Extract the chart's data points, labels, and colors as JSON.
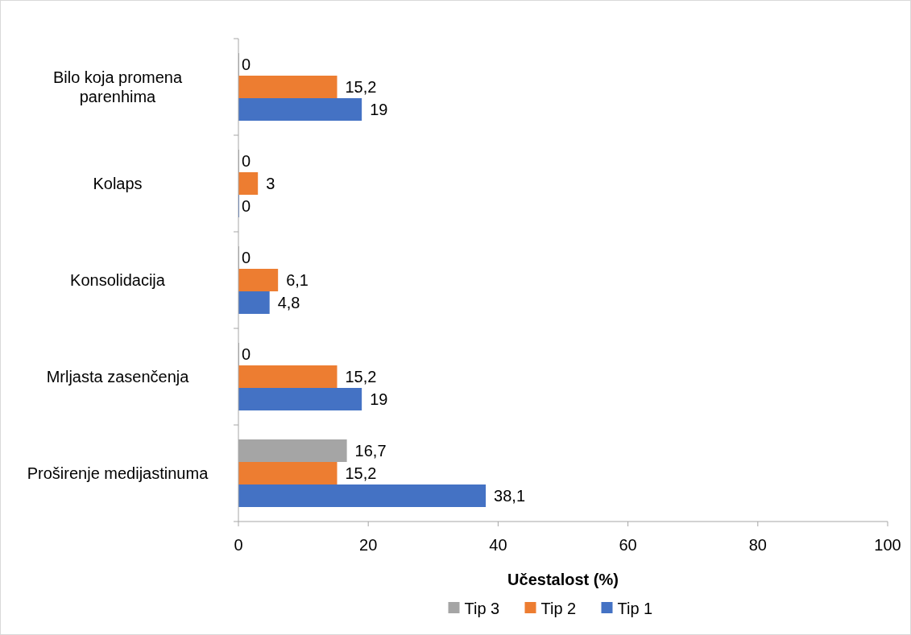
{
  "chart_data": {
    "type": "bar",
    "orientation": "horizontal",
    "xlabel": "Učestalost (%)",
    "categories": [
      "Bilo koja promena parenhima",
      "Kolaps",
      "Konsolidacija",
      "Mrljasta zasenčenja",
      "Proširenje medijastinuma"
    ],
    "series": [
      {
        "name": "Tip 3",
        "color": "#a5a5a5",
        "values": [
          0,
          0,
          0,
          0,
          16.7
        ],
        "value_labels": [
          "0",
          "0",
          "0",
          "0",
          "16,7"
        ]
      },
      {
        "name": "Tip 2",
        "color": "#ed7d31",
        "values": [
          15.2,
          3,
          6.1,
          15.2,
          15.2
        ],
        "value_labels": [
          "15,2",
          "3",
          "6,1",
          "15,2",
          "15,2"
        ]
      },
      {
        "name": "Tip 1",
        "color": "#4472c4",
        "values": [
          19,
          0,
          4.8,
          19,
          38.1
        ],
        "value_labels": [
          "19",
          "0",
          "4,8",
          "19",
          "38,1"
        ]
      }
    ],
    "xlim": [
      0,
      100
    ],
    "xticks": [
      0,
      20,
      40,
      60,
      80,
      100
    ],
    "legend": "bottom",
    "grid": false
  }
}
